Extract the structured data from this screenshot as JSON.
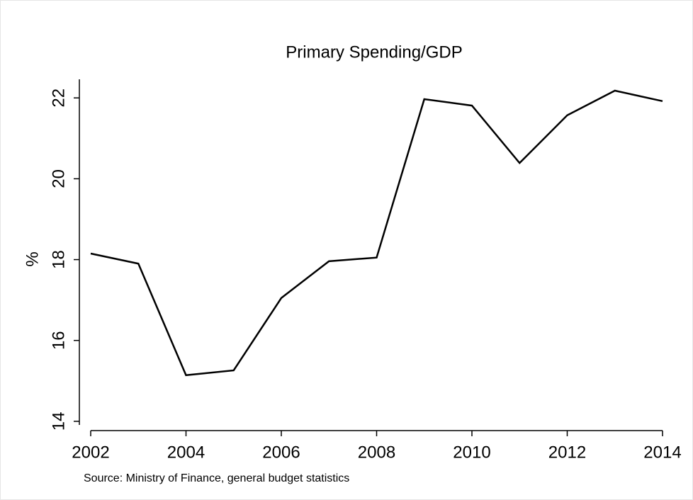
{
  "chart_data": {
    "type": "line",
    "title": "Primary Spending/GDP",
    "y_label": "%",
    "source": "Source: Ministry of Finance, general budget statistics",
    "x": [
      2002,
      2003,
      2004,
      2005,
      2006,
      2007,
      2008,
      2009,
      2010,
      2011,
      2012,
      2013,
      2014
    ],
    "series": [
      {
        "name": "Primary Spending/GDP",
        "color": "#000000",
        "values": [
          18.15,
          17.9,
          15.14,
          15.26,
          17.05,
          17.96,
          18.05,
          21.97,
          21.81,
          20.39,
          21.57,
          22.18,
          21.92
        ]
      }
    ],
    "xlim": [
      2002,
      2014
    ],
    "xticks": [
      2002,
      2004,
      2006,
      2008,
      2010,
      2012,
      2014
    ],
    "ylim": [
      13.91,
      22.46
    ],
    "yticks": [
      14,
      16,
      18,
      20,
      22
    ],
    "grid": false
  }
}
